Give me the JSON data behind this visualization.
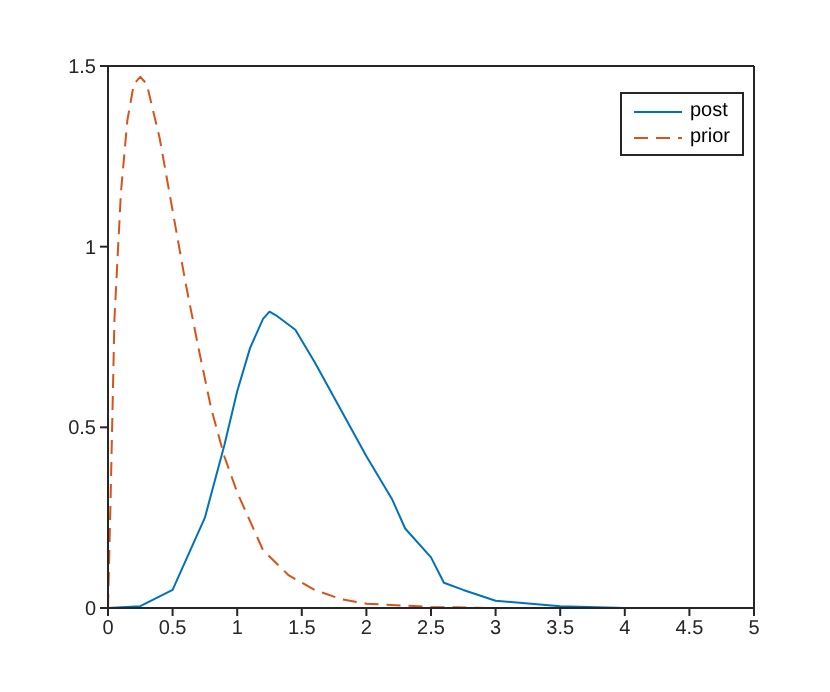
{
  "chart_data": {
    "type": "line",
    "xlim": [
      0,
      5
    ],
    "xticks": [
      0,
      0.5,
      1,
      1.5,
      2,
      2.5,
      3,
      3.5,
      4,
      4.5,
      5
    ],
    "ylim": [
      0,
      1.5
    ],
    "yticks": [
      0,
      0.5,
      1,
      1.5
    ],
    "legend": "top right",
    "marker": "none",
    "series": [
      {
        "name": "post",
        "color": "#0072bd",
        "line_style": "solid",
        "x": [
          0,
          0.25,
          0.5,
          0.75,
          0.9,
          1,
          1.1,
          1.2,
          1.25,
          1.3,
          1.45,
          1.6,
          1.8,
          2,
          2.2,
          2.3,
          2.5,
          2.6,
          2.75,
          3,
          3.5,
          4,
          5
        ],
        "values": [
          0,
          0.005,
          0.05,
          0.25,
          0.45,
          0.6,
          0.72,
          0.8,
          0.82,
          0.81,
          0.77,
          0.68,
          0.55,
          0.42,
          0.3,
          0.22,
          0.14,
          0.07,
          0.05,
          0.02,
          0.005,
          0,
          0
        ]
      },
      {
        "name": "prior",
        "color": "#d95319",
        "line_style": "dashed",
        "x": [
          0,
          0.02,
          0.05,
          0.1,
          0.15,
          0.2,
          0.25,
          0.3,
          0.4,
          0.5,
          0.6,
          0.7,
          0.8,
          0.9,
          1,
          1.2,
          1.4,
          1.6,
          1.8,
          2,
          2.5,
          3,
          5
        ],
        "values": [
          0,
          0.3,
          0.8,
          1.15,
          1.35,
          1.45,
          1.47,
          1.45,
          1.3,
          1.1,
          0.9,
          0.72,
          0.55,
          0.42,
          0.32,
          0.16,
          0.09,
          0.05,
          0.025,
          0.012,
          0.003,
          0,
          0
        ]
      }
    ]
  }
}
